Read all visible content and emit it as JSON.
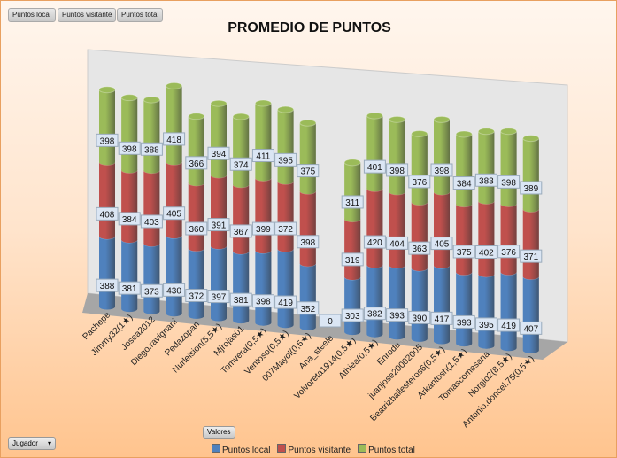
{
  "filters": [
    "Puntos local",
    "Puntos visitante",
    "Puntos total"
  ],
  "row_field": "Jugador",
  "values_field": "Valores",
  "chart_data": {
    "type": "bar",
    "subtype": "3d-stacked-cylinder",
    "title": "PROMEDIO DE PUNTOS",
    "categories": [
      "Pachepe",
      "Jimmy32(1★)",
      "Josea2012",
      "Diego.ravignani",
      "Pedazopan",
      "Nurleision(5,5★)",
      "Mjrojas01",
      "Tomvera(0,5★)",
      "Ventoso(0,5★)",
      "007Mayol(0,5★)",
      "Ana_steele",
      "Volvoreta1914(0,5★)",
      "Athiea(0,5★)",
      "Enrodu",
      "juanjose20002005",
      "Beatrizballesteros6(0,5★)",
      "Arkantosh(1,5★)",
      "Tomascomesana",
      "Norgio2(8,5★)",
      "Antonio.doncel.75(0,5★)"
    ],
    "series": [
      {
        "name": "Puntos local",
        "color": "#4f81bd",
        "values": [
          388,
          381,
          373,
          430,
          372,
          397,
          381,
          398,
          419,
          352,
          0,
          303,
          382,
          393,
          390,
          417,
          393,
          395,
          419,
          407
        ]
      },
      {
        "name": "Puntos visitante",
        "color": "#c0504d",
        "values": [
          408,
          384,
          403,
          405,
          360,
          391,
          367,
          399,
          372,
          398,
          0,
          319,
          420,
          404,
          363,
          405,
          375,
          402,
          376,
          371
        ]
      },
      {
        "name": "Puntos total",
        "color": "#9bbb59",
        "values": [
          398,
          398,
          388,
          418,
          366,
          394,
          374,
          411,
          395,
          375,
          0,
          311,
          401,
          398,
          376,
          398,
          384,
          383,
          398,
          389
        ]
      }
    ],
    "legend": "bottom",
    "grid": false
  }
}
